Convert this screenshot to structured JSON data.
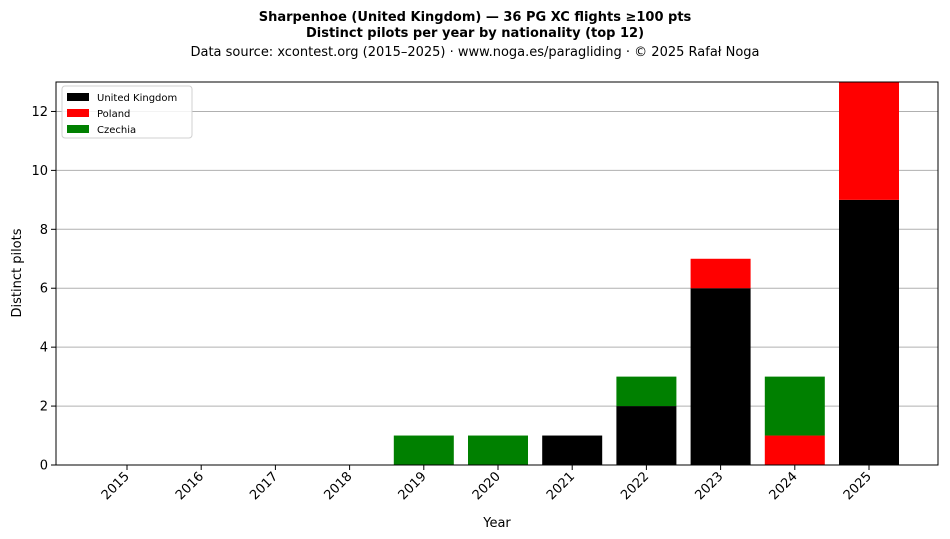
{
  "chart_data": {
    "type": "bar",
    "stacked": true,
    "title": "Sharpenhoe (United Kingdom)  —  36 PG XC flights ≥100 pts",
    "subtitle": "Distinct pilots per year by nationality (top 12)",
    "source": "Data source: xcontest.org (2015–2025)  ·  www.noga.es/paragliding  ·  © 2025 Rafał Noga",
    "xlabel": "Year",
    "ylabel": "Distinct pilots",
    "categories": [
      "2015",
      "2016",
      "2017",
      "2018",
      "2019",
      "2020",
      "2021",
      "2022",
      "2023",
      "2024",
      "2025"
    ],
    "series": [
      {
        "name": "United Kingdom",
        "color": "#000000",
        "values": [
          0,
          0,
          0,
          0,
          0,
          0,
          1,
          2,
          6,
          0,
          9
        ]
      },
      {
        "name": "Poland",
        "color": "#ff0000",
        "values": [
          0,
          0,
          0,
          0,
          0,
          0,
          0,
          0,
          1,
          1,
          4
        ]
      },
      {
        "name": "Czechia",
        "color": "#008000",
        "values": [
          0,
          0,
          0,
          0,
          1,
          1,
          0,
          1,
          0,
          2,
          0
        ]
      }
    ],
    "ylim": [
      0,
      13
    ],
    "yticks": [
      0,
      2,
      4,
      6,
      8,
      10,
      12
    ],
    "grid": "y",
    "legend": "top-left"
  }
}
